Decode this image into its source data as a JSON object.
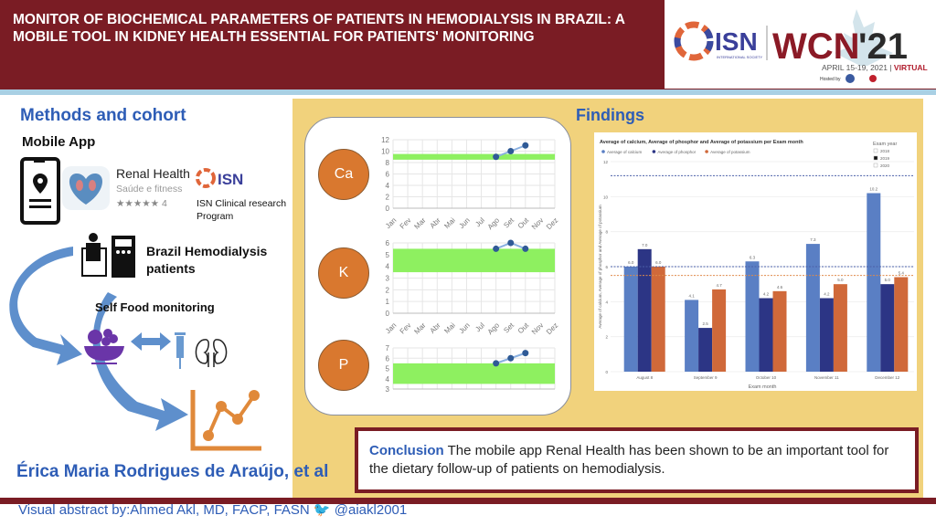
{
  "header": {
    "title": "MONITOR OF BIOCHEMICAL PARAMETERS OF PATIENTS IN HEMODIALYSIS IN BRAZIL: A MOBILE TOOL IN KIDNEY HEALTH ESSENTIAL FOR PATIENTS' MONITORING",
    "logo": {
      "isn": "ISN",
      "isn_sub": "INTERNATIONAL SOCIETY OF NEPHROLOGY",
      "wcn": "WCN",
      "year": "'21",
      "dates": "APRIL 15-19, 2021 | ",
      "virtual": "VIRTUAL",
      "hosted": "Hosted by"
    }
  },
  "methods": {
    "heading": "Methods and cohort",
    "mobile_app": "Mobile App",
    "app_name": "Renal Health",
    "app_category": "Saúde e fitness",
    "rating_stars": "★★★★★",
    "rating_count": "4",
    "isn_logo": "ISN",
    "isn_program": "ISN Clinical research Program",
    "patients": "Brazil Hemodialysis patients",
    "self_food": "Self Food monitoring",
    "author": "Érica Maria Rodrigues de Araújo, et al"
  },
  "findings": {
    "heading": "Findings",
    "circles": [
      "Ca",
      "K",
      "P"
    ]
  },
  "line_charts": [
    {
      "name": "Ca",
      "months": [
        "Jan",
        "Fev",
        "Mar",
        "Abr",
        "Mai",
        "Jun",
        "Jul",
        "Ago",
        "Set",
        "Out",
        "Nov",
        "Dez"
      ],
      "ylim": [
        0,
        12
      ],
      "yticks": [
        0,
        2,
        4,
        6,
        8,
        10,
        12
      ],
      "band": [
        8.5,
        9.5
      ],
      "points": [
        [
          7,
          9
        ],
        [
          8,
          10
        ],
        [
          9,
          11
        ]
      ]
    },
    {
      "name": "K",
      "months": [
        "Jan",
        "Fev",
        "Mar",
        "Abr",
        "Mai",
        "Jun",
        "Jul",
        "Ago",
        "Set",
        "Out",
        "Nov",
        "Dez"
      ],
      "ylim": [
        0,
        6
      ],
      "yticks": [
        0,
        1,
        2,
        3,
        4,
        5,
        6
      ],
      "band": [
        3.5,
        5.5
      ],
      "points": [
        [
          7,
          5.5
        ],
        [
          8,
          6
        ],
        [
          9,
          5.5
        ]
      ]
    },
    {
      "name": "P",
      "months": [],
      "ylim": [
        3,
        7
      ],
      "yticks": [
        3,
        4,
        5,
        6,
        7
      ],
      "band": [
        3.5,
        5.5
      ],
      "points": [
        [
          7,
          5.5
        ],
        [
          8,
          6
        ],
        [
          9,
          6.5
        ]
      ]
    }
  ],
  "chart_data": {
    "type": "bar",
    "title": "Average of calcium, Average of phosphor and Average of potassium per Exam month",
    "categories": [
      "August 8",
      "September 9",
      "October 10",
      "November 11",
      "December 12"
    ],
    "series": [
      {
        "name": "Average of calcium",
        "color": "#5a7fc4",
        "values": [
          6.0,
          4.1,
          6.3,
          7.3,
          10.2
        ]
      },
      {
        "name": "Average of phosphor",
        "color": "#2c3585",
        "values": [
          7.0,
          2.5,
          4.2,
          4.2,
          5.0
        ]
      },
      {
        "name": "Average of potassium",
        "color": "#d0693a",
        "values": [
          6.0,
          4.7,
          4.6,
          5.0,
          5.4
        ]
      }
    ],
    "data_labels": [
      [
        "6.0",
        "7.0",
        "6.0"
      ],
      [
        "4.1",
        "2.5",
        "4.7"
      ],
      [
        "6.3",
        "4.2",
        "4.6"
      ],
      [
        "7.3",
        "4.2",
        "5.0"
      ],
      [
        "10.2",
        "5.0",
        "5.4"
      ]
    ],
    "reference_lines": [
      {
        "value": 11.2,
        "color": "#4a5fa8"
      },
      {
        "value": 6.0,
        "color": "#4a5fa8"
      },
      {
        "value": 5.5,
        "color": "#e08a4a"
      }
    ],
    "xlabel": "Exam month",
    "ylabel": "Average of calcium, Average of phosphor and Average of potassium",
    "ylim": [
      0,
      12
    ],
    "yticks": [
      0,
      2,
      4,
      6,
      8,
      10,
      12
    ],
    "legend_filter": {
      "title": "Exam year",
      "options": [
        "2018",
        "2019",
        "2020"
      ],
      "selected": "2019"
    }
  },
  "conclusion": {
    "label": "Conclusion",
    "text": " The mobile app Renal Health has been shown to be an important tool for the dietary follow-up of patients on hemodialysis."
  },
  "footer": {
    "text": "Visual abstract by:Ahmed Akl, MD, FACP, FASN",
    "twitter": "@aiakl2001"
  }
}
